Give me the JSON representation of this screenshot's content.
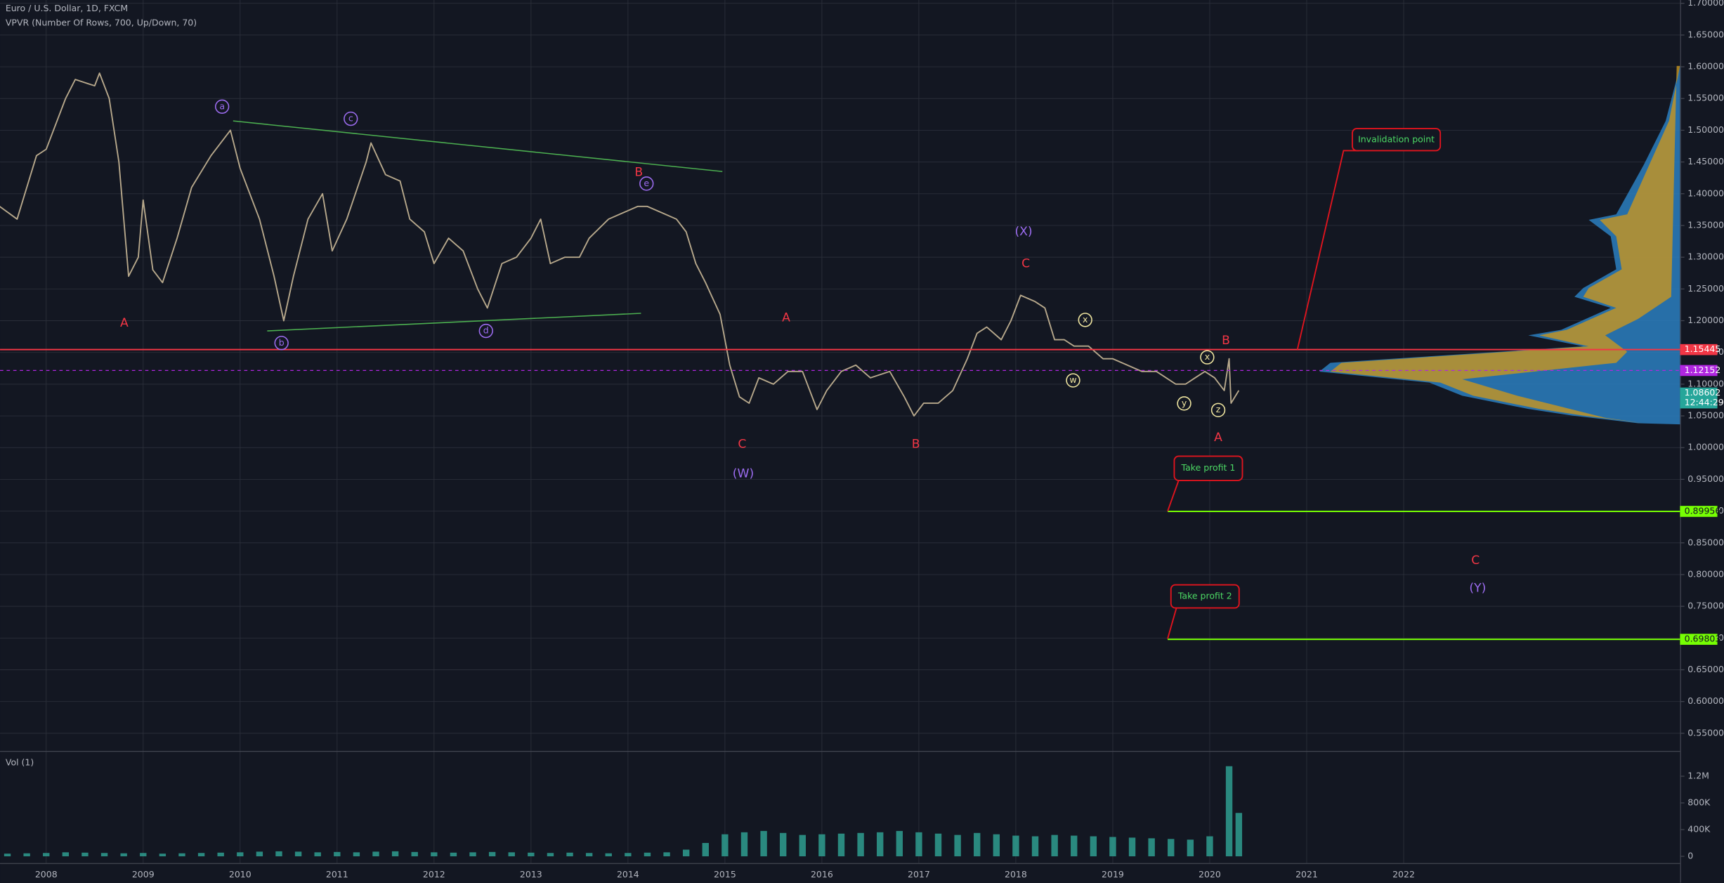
{
  "chart_data": [
    {
      "type": "line",
      "title": "Euro / U.S. Dollar, 1D, FXCM",
      "subtitle": "VPVR (Number Of Rows, 700, Up/Down, 70)",
      "x": [
        2007.52,
        2007.7,
        2007.9,
        2008.0,
        2008.2,
        2008.3,
        2008.5,
        2008.55,
        2008.65,
        2008.75,
        2008.85,
        2008.95,
        2009.0,
        2009.1,
        2009.2,
        2009.35,
        2009.5,
        2009.7,
        2009.9,
        2010.0,
        2010.2,
        2010.35,
        2010.45,
        2010.55,
        2010.7,
        2010.85,
        2010.95,
        2011.1,
        2011.3,
        2011.35,
        2011.5,
        2011.65,
        2011.75,
        2011.9,
        2012.0,
        2012.15,
        2012.3,
        2012.45,
        2012.55,
        2012.7,
        2012.85,
        2013.0,
        2013.1,
        2013.2,
        2013.35,
        2013.5,
        2013.6,
        2013.8,
        2013.95,
        2014.1,
        2014.2,
        2014.35,
        2014.5,
        2014.6,
        2014.7,
        2014.8,
        2014.95,
        2015.05,
        2015.15,
        2015.25,
        2015.35,
        2015.5,
        2015.65,
        2015.8,
        2015.95,
        2016.05,
        2016.2,
        2016.35,
        2016.5,
        2016.7,
        2016.85,
        2016.95,
        2017.05,
        2017.2,
        2017.35,
        2017.5,
        2017.6,
        2017.7,
        2017.85,
        2017.95,
        2018.05,
        2018.2,
        2018.3,
        2018.4,
        2018.5,
        2018.6,
        2018.75,
        2018.9,
        2019.0,
        2019.15,
        2019.3,
        2019.45,
        2019.55,
        2019.65,
        2019.75,
        2019.85,
        2019.95,
        2020.05,
        2020.15,
        2020.2,
        2020.22,
        2020.3
      ],
      "values": [
        1.38,
        1.36,
        1.46,
        1.47,
        1.55,
        1.58,
        1.57,
        1.59,
        1.55,
        1.45,
        1.27,
        1.3,
        1.39,
        1.28,
        1.26,
        1.33,
        1.41,
        1.46,
        1.5,
        1.44,
        1.36,
        1.27,
        1.2,
        1.27,
        1.36,
        1.4,
        1.31,
        1.36,
        1.45,
        1.48,
        1.43,
        1.42,
        1.36,
        1.34,
        1.29,
        1.33,
        1.31,
        1.25,
        1.22,
        1.29,
        1.3,
        1.33,
        1.36,
        1.29,
        1.3,
        1.3,
        1.33,
        1.36,
        1.37,
        1.38,
        1.38,
        1.37,
        1.36,
        1.34,
        1.29,
        1.26,
        1.21,
        1.13,
        1.08,
        1.07,
        1.11,
        1.1,
        1.12,
        1.12,
        1.06,
        1.09,
        1.12,
        1.13,
        1.11,
        1.12,
        1.08,
        1.05,
        1.07,
        1.07,
        1.09,
        1.14,
        1.18,
        1.19,
        1.17,
        1.2,
        1.24,
        1.23,
        1.22,
        1.17,
        1.17,
        1.16,
        1.16,
        1.14,
        1.14,
        1.13,
        1.12,
        1.12,
        1.11,
        1.1,
        1.1,
        1.11,
        1.12,
        1.11,
        1.09,
        1.14,
        1.07,
        1.09
      ],
      "color": "#b8a98c",
      "xlim": [
        2007.524,
        2024.85
      ],
      "xticks": [
        2008,
        2009,
        2010,
        2011,
        2012,
        2013,
        2014,
        2015,
        2016,
        2017,
        2018,
        2019,
        2020,
        2021,
        2022
      ],
      "ylim": [
        0.5223,
        1.7052
      ],
      "yticks": [
        {
          "value": 0.55,
          "label": "0.55000"
        },
        {
          "value": 0.6,
          "label": "0.60000"
        },
        {
          "value": 0.65,
          "label": "0.65000"
        },
        {
          "value": 0.7,
          "label": "0.70000"
        },
        {
          "value": 0.75,
          "label": "0.75000"
        },
        {
          "value": 0.8,
          "label": "0.80000"
        },
        {
          "value": 0.85,
          "label": "0.85000"
        },
        {
          "value": 0.9,
          "label": "0.90000"
        },
        {
          "value": 0.95,
          "label": "0.95000"
        },
        {
          "value": 1.0,
          "label": "1.00000"
        },
        {
          "value": 1.05,
          "label": "1.05000"
        },
        {
          "value": 1.1,
          "label": "1.10000"
        },
        {
          "value": 1.15,
          "label": "1.15000"
        },
        {
          "value": 1.2,
          "label": "1.20000"
        },
        {
          "value": 1.25,
          "label": "1.25000"
        },
        {
          "value": 1.3,
          "label": "1.30000"
        },
        {
          "value": 1.35,
          "label": "1.35000"
        },
        {
          "value": 1.4,
          "label": "1.40000"
        },
        {
          "value": 1.45,
          "label": "1.45000"
        },
        {
          "value": 1.5,
          "label": "1.50000"
        },
        {
          "value": 1.55,
          "label": "1.55000"
        },
        {
          "value": 1.6,
          "label": "1.60000"
        },
        {
          "value": 1.65,
          "label": "1.65000"
        },
        {
          "value": 1.7,
          "label": "1.70000"
        }
      ],
      "grid": true,
      "price_lines": [
        {
          "value": 1.15445,
          "color": "#f23645"
        },
        {
          "value": 1.12152,
          "color": "#b026e0"
        },
        {
          "value": 0.89956,
          "color": "#76ff03"
        },
        {
          "value": 0.69803,
          "color": "#76ff03"
        }
      ],
      "last_price": 1.08602,
      "countdown": "12:44:29",
      "callouts": [
        "Invalidation point",
        "Take profit 1",
        "Take profit 2"
      ],
      "annotations": [
        "a",
        "c",
        "B",
        "e",
        "b",
        "d",
        "A",
        "A",
        "C",
        "(W)",
        "B",
        "(X)",
        "C",
        "x",
        "w",
        "x",
        "B",
        "y",
        "z",
        "A",
        "C",
        "(Y)"
      ]
    },
    {
      "type": "bar",
      "title": "Vol (1)",
      "x": [
        2007.6,
        2007.8,
        2008.0,
        2008.2,
        2008.4,
        2008.6,
        2008.8,
        2009.0,
        2009.2,
        2009.4,
        2009.6,
        2009.8,
        2010.0,
        2010.2,
        2010.4,
        2010.6,
        2010.8,
        2011.0,
        2011.2,
        2011.4,
        2011.6,
        2011.8,
        2012.0,
        2012.2,
        2012.4,
        2012.6,
        2012.8,
        2013.0,
        2013.2,
        2013.4,
        2013.6,
        2013.8,
        2014.0,
        2014.2,
        2014.4,
        2014.6,
        2014.8,
        2015.0,
        2015.2,
        2015.4,
        2015.6,
        2015.8,
        2016.0,
        2016.2,
        2016.4,
        2016.6,
        2016.8,
        2017.0,
        2017.2,
        2017.4,
        2017.6,
        2017.8,
        2018.0,
        2018.2,
        2018.4,
        2018.6,
        2018.8,
        2019.0,
        2019.2,
        2019.4,
        2019.6,
        2019.8,
        2020.0,
        2020.2,
        2020.3
      ],
      "values": [
        40000,
        45000,
        50000,
        60000,
        55000,
        50000,
        45000,
        50000,
        40000,
        45000,
        50000,
        55000,
        60000,
        70000,
        75000,
        70000,
        60000,
        65000,
        60000,
        70000,
        75000,
        65000,
        60000,
        55000,
        60000,
        65000,
        60000,
        55000,
        50000,
        55000,
        50000,
        45000,
        50000,
        55000,
        60000,
        100000,
        200000,
        330000,
        360000,
        380000,
        350000,
        320000,
        330000,
        340000,
        350000,
        360000,
        380000,
        360000,
        340000,
        320000,
        350000,
        330000,
        310000,
        300000,
        320000,
        310000,
        300000,
        290000,
        280000,
        270000,
        260000,
        250000,
        300000,
        1350000,
        650000
      ],
      "color": "#2f9e8f",
      "ylim": [
        -100000,
        1580000
      ],
      "yticks": [
        0,
        {
          "value": 400000,
          "label": "400K"
        },
        {
          "value": 800000,
          "label": "800K"
        },
        {
          "value": 1200000,
          "label": "1.2M"
        }
      ]
    }
  ]
}
